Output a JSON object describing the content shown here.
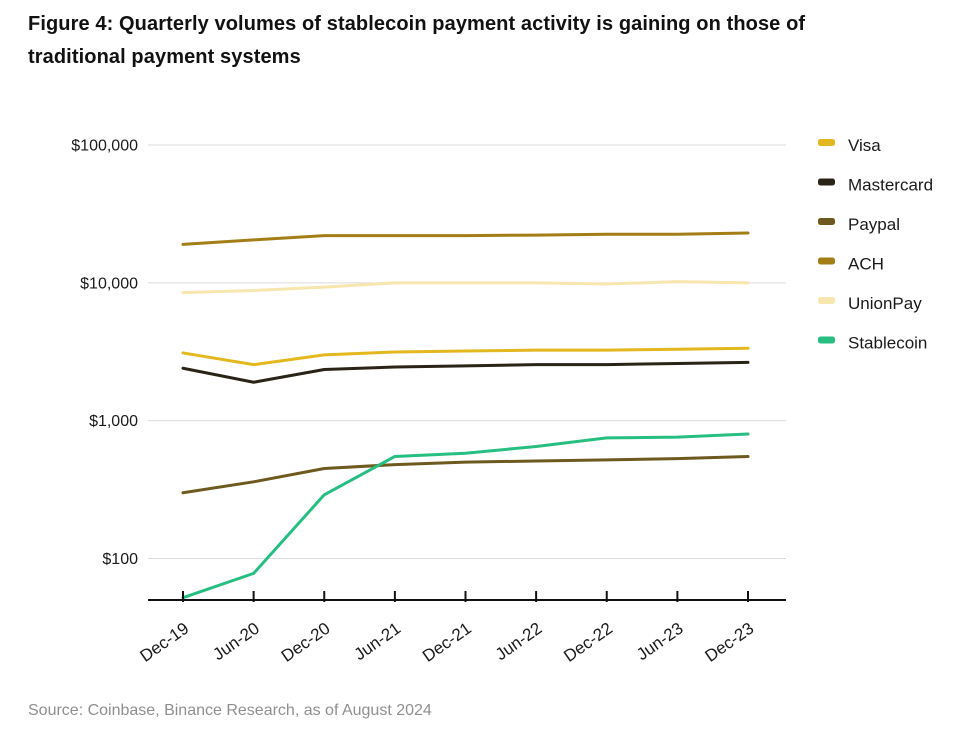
{
  "header": {
    "title_line1": "Figure 4: Quarterly volumes of stablecoin payment activity is gaining on those of",
    "title_line2": "traditional payment systems"
  },
  "footer": {
    "source": "Source: Coinbase, Binance Research, as of August 2024"
  },
  "chart_data": {
    "type": "line",
    "title": "Figure 4: Quarterly volumes of stablecoin payment activity is gaining on those of traditional payment systems",
    "xlabel": "",
    "ylabel": "",
    "y_scale": "log",
    "ylim": [
      50,
      100000
    ],
    "grid": true,
    "legend_position": "right",
    "x_labels": [
      "Dec-19",
      "Jun-20",
      "Dec-20",
      "Jun-21",
      "Dec-21",
      "Jun-22",
      "Dec-22",
      "Jun-23",
      "Dec-23"
    ],
    "y_ticks": [
      {
        "value": 100,
        "label": "$100"
      },
      {
        "value": 1000,
        "label": "$1,000"
      },
      {
        "value": 10000,
        "label": "$10,000"
      },
      {
        "value": 100000,
        "label": "$100,000"
      }
    ],
    "series": [
      {
        "name": "Visa",
        "color": "#E3B71E",
        "values": [
          3100,
          2550,
          3000,
          3150,
          3200,
          3250,
          3250,
          3300,
          3350
        ]
      },
      {
        "name": "Mastercard",
        "color": "#2A2416",
        "values": [
          2400,
          1900,
          2350,
          2450,
          2500,
          2550,
          2550,
          2600,
          2650
        ]
      },
      {
        "name": "Paypal",
        "color": "#6E5A1E",
        "values": [
          300,
          360,
          450,
          480,
          500,
          510,
          520,
          530,
          550
        ]
      },
      {
        "name": "ACH",
        "color": "#A37E16",
        "values": [
          19000,
          20500,
          22000,
          22000,
          22000,
          22200,
          22500,
          22500,
          23000
        ]
      },
      {
        "name": "UnionPay",
        "color": "#F7E6AE",
        "values": [
          8500,
          8800,
          9300,
          10000,
          10000,
          10000,
          9800,
          10200,
          10000
        ]
      },
      {
        "name": "Stablecoin",
        "color": "#26BE81",
        "values": [
          52,
          78,
          290,
          550,
          580,
          650,
          750,
          760,
          800
        ]
      }
    ]
  }
}
